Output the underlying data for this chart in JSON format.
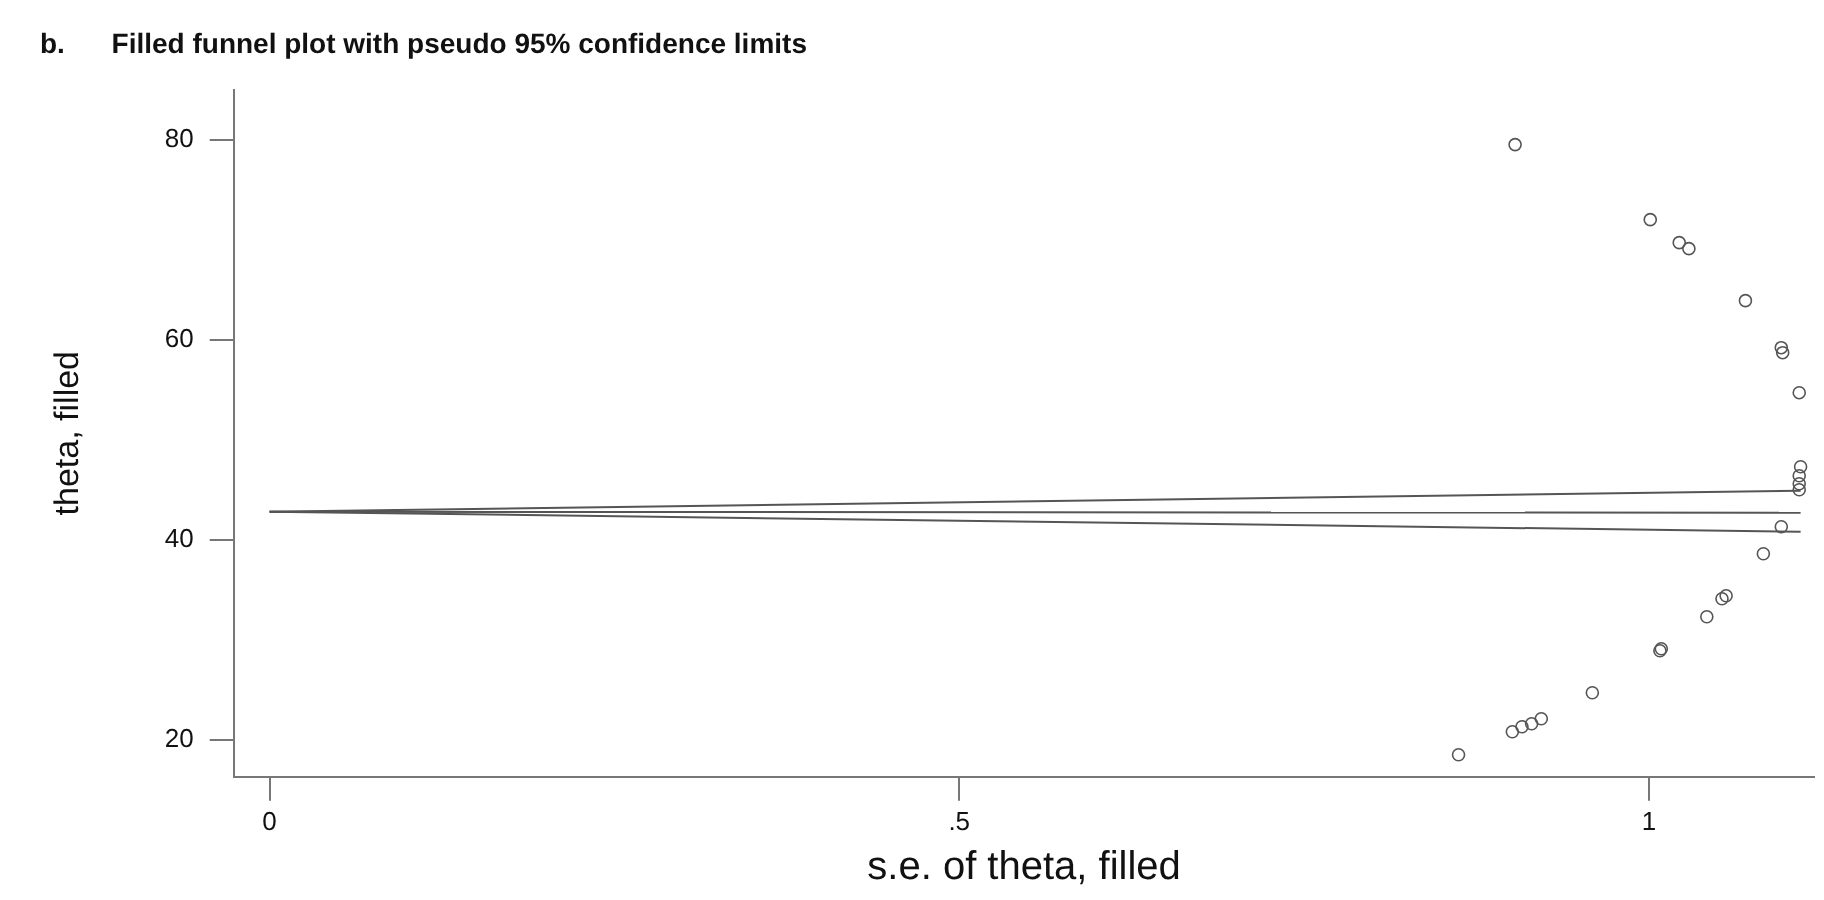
{
  "chart_data": {
    "type": "scatter",
    "title": "b.      Filled funnel plot with pseudo 95% confidence limits",
    "xlabel": "s.e. of theta, filled",
    "ylabel": "theta, filled",
    "xlim": [
      -0.026,
      1.12
    ],
    "ylim": [
      16.3,
      85
    ],
    "xticks": [
      0,
      {
        "value": 0.5,
        "label": ".5"
      },
      1
    ],
    "yticks": [
      20,
      40,
      60,
      80
    ],
    "grid": false,
    "series": [
      {
        "type": "scatter",
        "marker": "circle",
        "color": "#555555",
        "x": [
          0.862,
          0.901,
          0.908,
          0.915,
          0.922,
          0.959,
          1.008,
          1.009,
          1.042,
          1.053,
          1.056,
          1.083,
          1.096,
          1.109,
          1.109,
          1.109,
          1.11,
          1.001,
          1.022,
          1.029,
          1.07,
          1.096,
          1.097,
          1.109,
          0.903
        ],
        "values": [
          18.5,
          20.8,
          21.3,
          21.6,
          22.1,
          24.7,
          28.9,
          29.1,
          32.3,
          34.1,
          34.4,
          38.6,
          41.3,
          45.0,
          45.6,
          46.4,
          47.3,
          72.0,
          69.7,
          69.1,
          63.9,
          59.2,
          58.7,
          54.7,
          79.5
        ]
      },
      {
        "type": "line",
        "marker": "none",
        "line_style": "solid",
        "color": "#555555",
        "x": [
          0,
          1.11
        ],
        "values": [
          42.8,
          44.9
        ]
      },
      {
        "type": "line",
        "marker": "none",
        "line_style": "solid",
        "color": "#555555",
        "x": [
          0,
          1.11
        ],
        "values": [
          42.8,
          42.7
        ]
      },
      {
        "type": "line",
        "marker": "none",
        "line_style": "solid",
        "color": "#555555",
        "x": [
          0,
          1.11
        ],
        "values": [
          42.8,
          40.8
        ]
      }
    ]
  }
}
